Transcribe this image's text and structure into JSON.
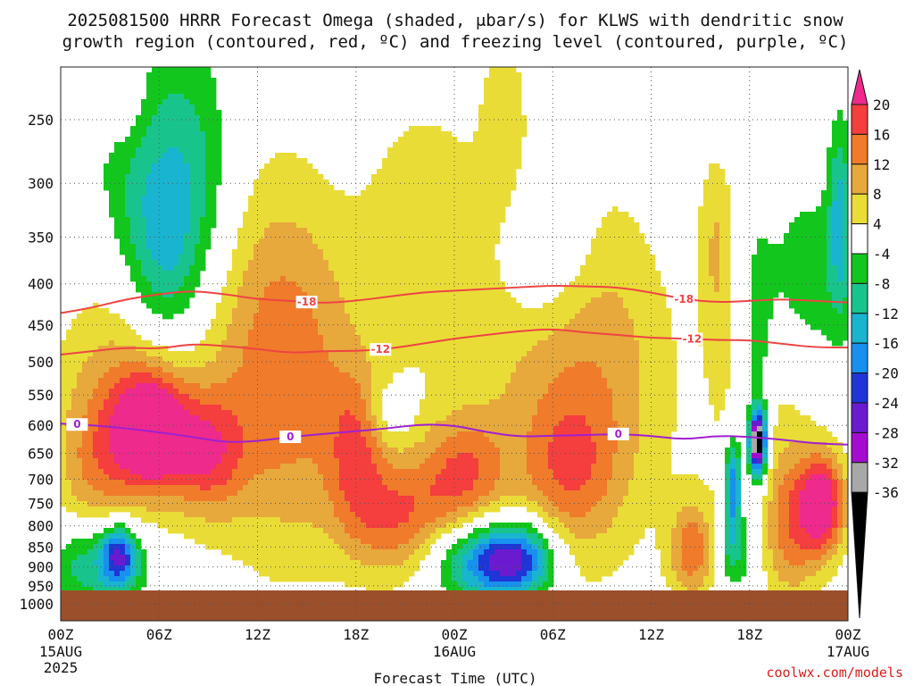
{
  "chart_data": {
    "type": "heatmap",
    "title_line1": "2025081500 HRRR Forecast Omega (shaded, μbar/s) for KLWS with dendritic snow",
    "title_line2": "growth region (contoured, red, ºC) and freezing level (contoured, purple, ºC)",
    "xlabel": "Forecast Time (UTC)",
    "ylabel": "",
    "x_range_hours": [
      0,
      48
    ],
    "y_range_hpa": [
      215,
      1050
    ],
    "y_scale": "log-pressure",
    "grid": true,
    "y_ticks": [
      "250",
      "300",
      "350",
      "400",
      "450",
      "500",
      "550",
      "600",
      "650",
      "700",
      "750",
      "800",
      "850",
      "900",
      "950",
      "1000"
    ],
    "x_ticks": [
      {
        "label": "00Z",
        "sub": "15AUG",
        "sub2": "2025",
        "hour": 0
      },
      {
        "label": "06Z",
        "sub": "",
        "sub2": "",
        "hour": 6
      },
      {
        "label": "12Z",
        "sub": "",
        "sub2": "",
        "hour": 12
      },
      {
        "label": "18Z",
        "sub": "",
        "sub2": "",
        "hour": 18
      },
      {
        "label": "00Z",
        "sub": "16AUG",
        "sub2": "",
        "hour": 24
      },
      {
        "label": "06Z",
        "sub": "",
        "sub2": "",
        "hour": 30
      },
      {
        "label": "12Z",
        "sub": "",
        "sub2": "",
        "hour": 36
      },
      {
        "label": "18Z",
        "sub": "",
        "sub2": "",
        "hour": 42
      },
      {
        "label": "00Z",
        "sub": "17AUG",
        "sub2": "",
        "hour": 48
      }
    ],
    "colorbar": {
      "labels": [
        "20",
        "16",
        "12",
        "8",
        "4",
        "-4",
        "-8",
        "-12",
        "-16",
        "-20",
        "-24",
        "-28",
        "-32",
        "-36"
      ],
      "bins": [
        {
          "min": 20,
          "max": 99,
          "color": "#ee2a8c"
        },
        {
          "min": 16,
          "max": 20,
          "color": "#f53e3e"
        },
        {
          "min": 12,
          "max": 16,
          "color": "#ef7b2b"
        },
        {
          "min": 8,
          "max": 12,
          "color": "#e7a83c"
        },
        {
          "min": 4,
          "max": 8,
          "color": "#e9dc37"
        },
        {
          "min": -4,
          "max": 4,
          "color": "#ffffff"
        },
        {
          "min": -8,
          "max": -4,
          "color": "#12c61e"
        },
        {
          "min": -12,
          "max": -8,
          "color": "#19c48c"
        },
        {
          "min": -16,
          "max": -12,
          "color": "#19b4cf"
        },
        {
          "min": -20,
          "max": -16,
          "color": "#1790ee"
        },
        {
          "min": -24,
          "max": -20,
          "color": "#1f35d6"
        },
        {
          "min": -28,
          "max": -24,
          "color": "#6a1bd0"
        },
        {
          "min": -32,
          "max": -28,
          "color": "#a40cd0"
        },
        {
          "min": -36,
          "max": -32,
          "color": "#a8a8a8"
        },
        {
          "min": -99,
          "max": -36,
          "color": "#000000"
        }
      ]
    },
    "omega_features": [
      {
        "h": 5.5,
        "p": 610,
        "sh": 1.6,
        "sp": 0.12,
        "amp": 24
      },
      {
        "h": 3.0,
        "p": 560,
        "sh": 2.5,
        "sp": 0.18,
        "amp": 7
      },
      {
        "h": 9.0,
        "p": 650,
        "sh": 1.6,
        "sp": 0.12,
        "amp": 14
      },
      {
        "h": 8.0,
        "p": 500,
        "sh": 5.0,
        "sp": 0.35,
        "amp": 6
      },
      {
        "h": 2.0,
        "p": 700,
        "sh": 1.6,
        "sp": 0.14,
        "amp": 8
      },
      {
        "h": 15.0,
        "p": 550,
        "sh": 3.5,
        "sp": 0.35,
        "amp": 7
      },
      {
        "h": 18.0,
        "p": 640,
        "sh": 1.2,
        "sp": 0.15,
        "amp": 11
      },
      {
        "h": 13.5,
        "p": 470,
        "sh": 2.5,
        "sp": 0.4,
        "amp": 6
      },
      {
        "h": 20.5,
        "p": 780,
        "sh": 2.2,
        "sp": 0.12,
        "amp": 14
      },
      {
        "h": 24.5,
        "p": 690,
        "sh": 1.8,
        "sp": 0.12,
        "amp": 13
      },
      {
        "h": 22.0,
        "p": 330,
        "sh": 2.5,
        "sp": 0.25,
        "amp": 6
      },
      {
        "h": 29.0,
        "p": 520,
        "sh": 4.0,
        "sp": 0.45,
        "amp": 7
      },
      {
        "h": 33.5,
        "p": 520,
        "sh": 3.0,
        "sp": 0.35,
        "amp": 7
      },
      {
        "h": 31.0,
        "p": 680,
        "sh": 2.0,
        "sp": 0.15,
        "amp": 9
      },
      {
        "h": 40.0,
        "p": 360,
        "sh": 0.8,
        "sp": 0.2,
        "amp": 8
      },
      {
        "h": 46.5,
        "p": 750,
        "sh": 1.0,
        "sp": 0.1,
        "amp": 22
      },
      {
        "h": 44.5,
        "p": 810,
        "sh": 1.4,
        "sp": 0.15,
        "amp": 12
      },
      {
        "h": 38.5,
        "p": 860,
        "sh": 1.0,
        "sp": 0.1,
        "amp": 14
      },
      {
        "h": 43.0,
        "p": 600,
        "sh": 2.5,
        "sp": 0.25,
        "amp": 6
      },
      {
        "h": 27.0,
        "p": 250,
        "sh": 1.0,
        "sp": 0.25,
        "amp": 5
      },
      {
        "h": 4.0,
        "p": 240,
        "sh": 1.0,
        "sp": 0.12,
        "amp": 6
      },
      {
        "h": 3.5,
        "p": 870,
        "sh": 0.8,
        "sp": 0.06,
        "amp": -22
      },
      {
        "h": 3.0,
        "p": 910,
        "sh": 2.0,
        "sp": 0.1,
        "amp": -8
      },
      {
        "h": 7.5,
        "p": 310,
        "sh": 2.0,
        "sp": 0.3,
        "amp": -13
      },
      {
        "h": 6.0,
        "p": 380,
        "sh": 1.5,
        "sp": 0.18,
        "amp": -8
      },
      {
        "h": 4.0,
        "p": 280,
        "sh": 1.5,
        "sp": 0.2,
        "amp": -7
      },
      {
        "h": 29.5,
        "p": 360,
        "sh": 2.0,
        "sp": 0.15,
        "amp": -9
      },
      {
        "h": 25.5,
        "p": 885,
        "sh": 2.0,
        "sp": 0.08,
        "amp": -18
      },
      {
        "h": 28.0,
        "p": 880,
        "sh": 1.6,
        "sp": 0.08,
        "amp": -22
      },
      {
        "h": 42.5,
        "p": 630,
        "sh": 0.35,
        "sp": 0.06,
        "amp": -40
      },
      {
        "h": 41.0,
        "p": 710,
        "sh": 0.35,
        "sp": 0.1,
        "amp": -22
      },
      {
        "h": 42.5,
        "p": 560,
        "sh": 0.7,
        "sp": 0.3,
        "amp": -9
      },
      {
        "h": 47.5,
        "p": 330,
        "sh": 0.5,
        "sp": 0.2,
        "amp": -12
      },
      {
        "h": 45.5,
        "p": 400,
        "sh": 2.0,
        "sp": 0.2,
        "amp": -7
      },
      {
        "h": 1.0,
        "p": 880,
        "sh": 1.0,
        "sp": 0.08,
        "amp": -6
      },
      {
        "h": 41.0,
        "p": 860,
        "sh": 0.8,
        "sp": 0.08,
        "amp": -10
      },
      {
        "h": 20.0,
        "p": 580,
        "sh": 1.0,
        "sp": 0.06,
        "amp": -5
      }
    ],
    "contours": [
      {
        "label": "-18",
        "color": "#ee4444",
        "label_hours": [
          15.0,
          38.0
        ],
        "points": [
          [
            0,
            435
          ],
          [
            2,
            428
          ],
          [
            4,
            418
          ],
          [
            6,
            412
          ],
          [
            8,
            408
          ],
          [
            10,
            412
          ],
          [
            12,
            418
          ],
          [
            14,
            420
          ],
          [
            16,
            423
          ],
          [
            18,
            420
          ],
          [
            20,
            415
          ],
          [
            22,
            410
          ],
          [
            24,
            408
          ],
          [
            26,
            406
          ],
          [
            28,
            404
          ],
          [
            30,
            402
          ],
          [
            32,
            403
          ],
          [
            34,
            404
          ],
          [
            36,
            410
          ],
          [
            38,
            418
          ],
          [
            40,
            422
          ],
          [
            42,
            420
          ],
          [
            44,
            418
          ],
          [
            46,
            420
          ],
          [
            48,
            422
          ]
        ]
      },
      {
        "label": "-12",
        "color": "#ee4444",
        "label_hours": [
          19.5,
          38.5
        ],
        "points": [
          [
            0,
            490
          ],
          [
            2,
            485
          ],
          [
            4,
            480
          ],
          [
            6,
            482
          ],
          [
            8,
            475
          ],
          [
            10,
            478
          ],
          [
            12,
            482
          ],
          [
            14,
            488
          ],
          [
            16,
            485
          ],
          [
            18,
            485
          ],
          [
            20,
            482
          ],
          [
            22,
            475
          ],
          [
            24,
            468
          ],
          [
            26,
            463
          ],
          [
            28,
            458
          ],
          [
            30,
            455
          ],
          [
            32,
            460
          ],
          [
            34,
            463
          ],
          [
            36,
            467
          ],
          [
            38,
            468
          ],
          [
            40,
            470
          ],
          [
            42,
            470
          ],
          [
            44,
            475
          ],
          [
            46,
            480
          ],
          [
            48,
            480
          ]
        ]
      },
      {
        "label": "0",
        "color": "#a020d0",
        "label_hours": [
          1.0,
          14.0,
          34.0
        ],
        "points": [
          [
            0,
            597
          ],
          [
            2,
            600
          ],
          [
            4,
            605
          ],
          [
            6,
            612
          ],
          [
            8,
            620
          ],
          [
            10,
            630
          ],
          [
            12,
            628
          ],
          [
            14,
            620
          ],
          [
            16,
            615
          ],
          [
            18,
            610
          ],
          [
            20,
            605
          ],
          [
            22,
            598
          ],
          [
            24,
            600
          ],
          [
            26,
            612
          ],
          [
            28,
            620
          ],
          [
            30,
            618
          ],
          [
            32,
            617
          ],
          [
            34,
            615
          ],
          [
            36,
            618
          ],
          [
            38,
            625
          ],
          [
            40,
            618
          ],
          [
            42,
            620
          ],
          [
            44,
            625
          ],
          [
            46,
            632
          ],
          [
            48,
            634
          ]
        ]
      }
    ]
  },
  "credit": "coolwx.com/models",
  "ground_color": "#9b4f2b"
}
